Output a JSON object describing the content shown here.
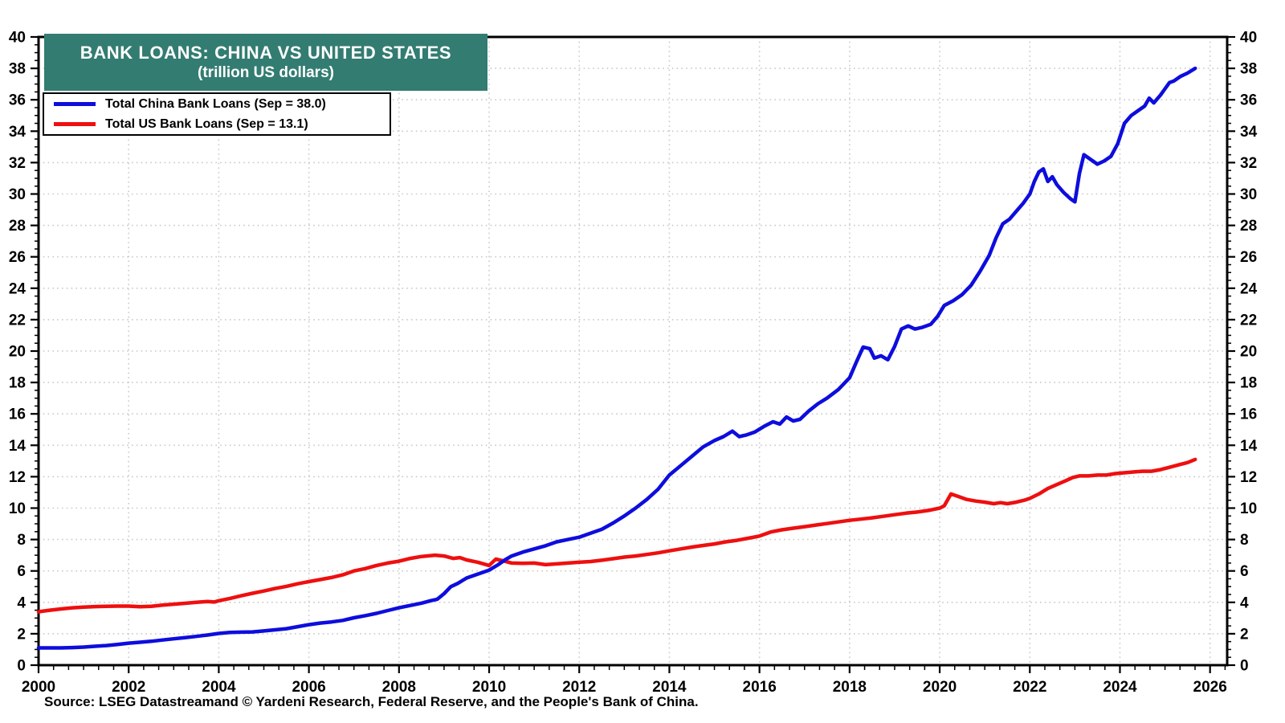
{
  "title": {
    "line1": "BANK LOANS: CHINA VS UNITED STATES",
    "line2": "(trillion US dollars)"
  },
  "source": "Source: LSEG Datastreamand © Yardeni Research, Federal Reserve, and the People's Bank of China.",
  "colors": {
    "title_bg": "#337c71",
    "title_text": "#ffffff",
    "grid": "#c9c9c9",
    "axis": "#000000",
    "china": "#0d0ddd",
    "us": "#ee0f0f"
  },
  "chart_data": {
    "type": "line",
    "title": "BANK LOANS: CHINA VS UNITED STATES",
    "subtitle": "(trillion US dollars)",
    "legend_position": "top-left",
    "grid": true,
    "x_axis": {
      "min": 2000,
      "max": 2026.38,
      "tick_start": 2000,
      "tick_end": 2026,
      "tick_step": 2,
      "minor_tick_step": 0.3333,
      "tick_labels": [
        "2000",
        "2002",
        "2004",
        "2006",
        "2008",
        "2010",
        "2012",
        "2014",
        "2016",
        "2018",
        "2020",
        "2022",
        "2024",
        "2026"
      ]
    },
    "y_axis": {
      "min": 0,
      "max": 40,
      "tick_step": 2,
      "minor_tick_step": 0.5,
      "labels_both_sides": true,
      "tick_labels": [
        "0",
        "2",
        "4",
        "6",
        "8",
        "10",
        "12",
        "14",
        "16",
        "18",
        "20",
        "22",
        "24",
        "26",
        "28",
        "30",
        "32",
        "34",
        "36",
        "38",
        "40"
      ]
    },
    "series": [
      {
        "name": "Total China Bank Loans (Sep = 38.0)",
        "color": "#0d0ddd",
        "last_point_label": "Sep = 38.0",
        "points": [
          [
            2000.0,
            1.1
          ],
          [
            2000.25,
            1.1
          ],
          [
            2000.5,
            1.1
          ],
          [
            2000.75,
            1.12
          ],
          [
            2001.0,
            1.15
          ],
          [
            2001.25,
            1.2
          ],
          [
            2001.5,
            1.25
          ],
          [
            2001.75,
            1.32
          ],
          [
            2002.0,
            1.4
          ],
          [
            2002.25,
            1.46
          ],
          [
            2002.5,
            1.52
          ],
          [
            2002.75,
            1.6
          ],
          [
            2003.0,
            1.68
          ],
          [
            2003.25,
            1.75
          ],
          [
            2003.5,
            1.83
          ],
          [
            2003.75,
            1.92
          ],
          [
            2004.0,
            2.02
          ],
          [
            2004.25,
            2.08
          ],
          [
            2004.5,
            2.1
          ],
          [
            2004.75,
            2.12
          ],
          [
            2005.0,
            2.18
          ],
          [
            2005.25,
            2.25
          ],
          [
            2005.5,
            2.32
          ],
          [
            2005.75,
            2.45
          ],
          [
            2006.0,
            2.58
          ],
          [
            2006.25,
            2.68
          ],
          [
            2006.5,
            2.75
          ],
          [
            2006.75,
            2.85
          ],
          [
            2007.0,
            3.02
          ],
          [
            2007.25,
            3.15
          ],
          [
            2007.5,
            3.3
          ],
          [
            2007.75,
            3.48
          ],
          [
            2008.0,
            3.65
          ],
          [
            2008.25,
            3.8
          ],
          [
            2008.5,
            3.95
          ],
          [
            2008.7,
            4.1
          ],
          [
            2008.85,
            4.2
          ],
          [
            2009.0,
            4.55
          ],
          [
            2009.15,
            5.0
          ],
          [
            2009.3,
            5.2
          ],
          [
            2009.5,
            5.55
          ],
          [
            2009.75,
            5.8
          ],
          [
            2010.0,
            6.05
          ],
          [
            2010.2,
            6.4
          ],
          [
            2010.35,
            6.7
          ],
          [
            2010.5,
            6.95
          ],
          [
            2010.75,
            7.2
          ],
          [
            2011.0,
            7.4
          ],
          [
            2011.25,
            7.6
          ],
          [
            2011.5,
            7.85
          ],
          [
            2011.75,
            8.0
          ],
          [
            2012.0,
            8.15
          ],
          [
            2012.25,
            8.4
          ],
          [
            2012.5,
            8.65
          ],
          [
            2012.75,
            9.05
          ],
          [
            2013.0,
            9.5
          ],
          [
            2013.25,
            10.0
          ],
          [
            2013.5,
            10.55
          ],
          [
            2013.75,
            11.2
          ],
          [
            2014.0,
            12.1
          ],
          [
            2014.25,
            12.7
          ],
          [
            2014.5,
            13.3
          ],
          [
            2014.75,
            13.9
          ],
          [
            2015.0,
            14.3
          ],
          [
            2015.2,
            14.55
          ],
          [
            2015.4,
            14.9
          ],
          [
            2015.55,
            14.55
          ],
          [
            2015.7,
            14.65
          ],
          [
            2015.9,
            14.85
          ],
          [
            2016.1,
            15.2
          ],
          [
            2016.3,
            15.5
          ],
          [
            2016.45,
            15.35
          ],
          [
            2016.6,
            15.8
          ],
          [
            2016.75,
            15.55
          ],
          [
            2016.9,
            15.65
          ],
          [
            2017.1,
            16.2
          ],
          [
            2017.3,
            16.65
          ],
          [
            2017.5,
            17.0
          ],
          [
            2017.75,
            17.55
          ],
          [
            2018.0,
            18.3
          ],
          [
            2018.15,
            19.3
          ],
          [
            2018.3,
            20.25
          ],
          [
            2018.45,
            20.15
          ],
          [
            2018.55,
            19.55
          ],
          [
            2018.7,
            19.7
          ],
          [
            2018.85,
            19.45
          ],
          [
            2019.0,
            20.3
          ],
          [
            2019.15,
            21.4
          ],
          [
            2019.3,
            21.6
          ],
          [
            2019.45,
            21.4
          ],
          [
            2019.6,
            21.5
          ],
          [
            2019.8,
            21.7
          ],
          [
            2019.95,
            22.2
          ],
          [
            2020.1,
            22.9
          ],
          [
            2020.3,
            23.2
          ],
          [
            2020.5,
            23.6
          ],
          [
            2020.7,
            24.2
          ],
          [
            2020.9,
            25.1
          ],
          [
            2021.1,
            26.1
          ],
          [
            2021.25,
            27.2
          ],
          [
            2021.4,
            28.1
          ],
          [
            2021.55,
            28.4
          ],
          [
            2021.7,
            28.9
          ],
          [
            2021.85,
            29.4
          ],
          [
            2022.0,
            30.0
          ],
          [
            2022.1,
            30.8
          ],
          [
            2022.2,
            31.4
          ],
          [
            2022.3,
            31.6
          ],
          [
            2022.4,
            30.8
          ],
          [
            2022.5,
            31.1
          ],
          [
            2022.6,
            30.6
          ],
          [
            2022.75,
            30.1
          ],
          [
            2022.9,
            29.7
          ],
          [
            2023.0,
            29.5
          ],
          [
            2023.1,
            31.3
          ],
          [
            2023.2,
            32.5
          ],
          [
            2023.35,
            32.2
          ],
          [
            2023.5,
            31.9
          ],
          [
            2023.65,
            32.1
          ],
          [
            2023.8,
            32.4
          ],
          [
            2023.95,
            33.2
          ],
          [
            2024.1,
            34.5
          ],
          [
            2024.25,
            35.0
          ],
          [
            2024.4,
            35.3
          ],
          [
            2024.55,
            35.6
          ],
          [
            2024.65,
            36.1
          ],
          [
            2024.75,
            35.8
          ],
          [
            2024.9,
            36.3
          ],
          [
            2025.0,
            36.7
          ],
          [
            2025.1,
            37.1
          ],
          [
            2025.2,
            37.2
          ],
          [
            2025.35,
            37.5
          ],
          [
            2025.5,
            37.7
          ],
          [
            2025.67,
            38.0
          ]
        ]
      },
      {
        "name": "Total US Bank Loans (Sep = 13.1)",
        "color": "#ee0f0f",
        "last_point_label": "Sep = 13.1",
        "points": [
          [
            2000.0,
            3.4
          ],
          [
            2000.25,
            3.5
          ],
          [
            2000.5,
            3.58
          ],
          [
            2000.75,
            3.65
          ],
          [
            2001.0,
            3.7
          ],
          [
            2001.25,
            3.73
          ],
          [
            2001.5,
            3.75
          ],
          [
            2001.75,
            3.76
          ],
          [
            2002.0,
            3.76
          ],
          [
            2002.25,
            3.72
          ],
          [
            2002.5,
            3.75
          ],
          [
            2002.75,
            3.82
          ],
          [
            2003.0,
            3.88
          ],
          [
            2003.25,
            3.94
          ],
          [
            2003.5,
            4.0
          ],
          [
            2003.75,
            4.05
          ],
          [
            2003.9,
            4.02
          ],
          [
            2004.0,
            4.1
          ],
          [
            2004.25,
            4.25
          ],
          [
            2004.5,
            4.42
          ],
          [
            2004.75,
            4.58
          ],
          [
            2005.0,
            4.72
          ],
          [
            2005.25,
            4.88
          ],
          [
            2005.5,
            5.02
          ],
          [
            2005.75,
            5.18
          ],
          [
            2006.0,
            5.32
          ],
          [
            2006.25,
            5.45
          ],
          [
            2006.5,
            5.58
          ],
          [
            2006.75,
            5.75
          ],
          [
            2007.0,
            6.0
          ],
          [
            2007.25,
            6.15
          ],
          [
            2007.5,
            6.35
          ],
          [
            2007.75,
            6.5
          ],
          [
            2008.0,
            6.62
          ],
          [
            2008.25,
            6.8
          ],
          [
            2008.5,
            6.92
          ],
          [
            2008.8,
            7.0
          ],
          [
            2009.0,
            6.95
          ],
          [
            2009.2,
            6.8
          ],
          [
            2009.35,
            6.85
          ],
          [
            2009.5,
            6.7
          ],
          [
            2009.75,
            6.55
          ],
          [
            2010.0,
            6.35
          ],
          [
            2010.15,
            6.75
          ],
          [
            2010.3,
            6.65
          ],
          [
            2010.5,
            6.5
          ],
          [
            2010.75,
            6.48
          ],
          [
            2011.0,
            6.5
          ],
          [
            2011.25,
            6.4
          ],
          [
            2011.5,
            6.45
          ],
          [
            2011.75,
            6.5
          ],
          [
            2012.0,
            6.55
          ],
          [
            2012.25,
            6.6
          ],
          [
            2012.5,
            6.68
          ],
          [
            2012.75,
            6.78
          ],
          [
            2013.0,
            6.88
          ],
          [
            2013.25,
            6.95
          ],
          [
            2013.5,
            7.05
          ],
          [
            2013.75,
            7.15
          ],
          [
            2014.0,
            7.28
          ],
          [
            2014.25,
            7.4
          ],
          [
            2014.5,
            7.52
          ],
          [
            2014.75,
            7.62
          ],
          [
            2015.0,
            7.72
          ],
          [
            2015.25,
            7.85
          ],
          [
            2015.5,
            7.95
          ],
          [
            2015.75,
            8.08
          ],
          [
            2016.0,
            8.22
          ],
          [
            2016.25,
            8.48
          ],
          [
            2016.5,
            8.62
          ],
          [
            2016.75,
            8.72
          ],
          [
            2017.0,
            8.82
          ],
          [
            2017.25,
            8.92
          ],
          [
            2017.5,
            9.02
          ],
          [
            2017.75,
            9.12
          ],
          [
            2018.0,
            9.22
          ],
          [
            2018.25,
            9.3
          ],
          [
            2018.5,
            9.38
          ],
          [
            2018.75,
            9.48
          ],
          [
            2019.0,
            9.58
          ],
          [
            2019.25,
            9.68
          ],
          [
            2019.5,
            9.75
          ],
          [
            2019.75,
            9.85
          ],
          [
            2020.0,
            10.0
          ],
          [
            2020.1,
            10.15
          ],
          [
            2020.25,
            10.9
          ],
          [
            2020.4,
            10.75
          ],
          [
            2020.6,
            10.55
          ],
          [
            2020.8,
            10.45
          ],
          [
            2021.0,
            10.38
          ],
          [
            2021.2,
            10.28
          ],
          [
            2021.35,
            10.35
          ],
          [
            2021.5,
            10.28
          ],
          [
            2021.7,
            10.38
          ],
          [
            2021.9,
            10.52
          ],
          [
            2022.0,
            10.62
          ],
          [
            2022.2,
            10.9
          ],
          [
            2022.4,
            11.25
          ],
          [
            2022.6,
            11.5
          ],
          [
            2022.8,
            11.75
          ],
          [
            2022.95,
            11.95
          ],
          [
            2023.1,
            12.05
          ],
          [
            2023.3,
            12.05
          ],
          [
            2023.5,
            12.1
          ],
          [
            2023.7,
            12.1
          ],
          [
            2023.9,
            12.2
          ],
          [
            2024.1,
            12.25
          ],
          [
            2024.3,
            12.3
          ],
          [
            2024.5,
            12.35
          ],
          [
            2024.7,
            12.35
          ],
          [
            2024.9,
            12.45
          ],
          [
            2025.1,
            12.6
          ],
          [
            2025.3,
            12.75
          ],
          [
            2025.5,
            12.9
          ],
          [
            2025.67,
            13.1
          ]
        ]
      }
    ]
  }
}
